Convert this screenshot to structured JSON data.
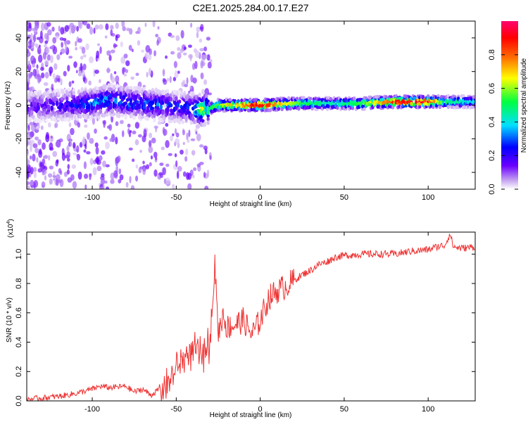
{
  "title": "C2E1.2025.284.00.17.E27",
  "chart_data": [
    {
      "type": "heatmap",
      "name": "spectrogram",
      "xlabel": "Height of straight line (km)",
      "ylabel": "Frequency (Hz)",
      "xlim": [
        -139,
        128
      ],
      "ylim": [
        -50,
        50
      ],
      "xticks": [
        -100,
        -50,
        0,
        50,
        100
      ],
      "xtick_labels": [
        "-100",
        "-50",
        "0",
        "50",
        "100"
      ],
      "yticks": [
        -40,
        -20,
        0,
        20,
        40
      ],
      "ytick_labels": [
        "-40",
        "-20",
        "0",
        "20",
        "40"
      ],
      "description_note": "Frequency band centered near 0 Hz; broad scatter for heights below -30 km, narrow high-amplitude line above -30 km",
      "ridge": {
        "x": [
          -139,
          -120,
          -100,
          -90,
          -80,
          -70,
          -60,
          -50,
          -40,
          -35,
          -30,
          -25,
          -20,
          0,
          20,
          40,
          60,
          80,
          100,
          110,
          128
        ],
        "y": [
          -1,
          0,
          1,
          3,
          2,
          1,
          0,
          -1,
          -2,
          -3,
          -2,
          0,
          0,
          0,
          1,
          1,
          1,
          2,
          2,
          2,
          2
        ],
        "amplitude": [
          0.15,
          0.2,
          0.3,
          0.35,
          0.3,
          0.3,
          0.3,
          0.25,
          0.3,
          0.7,
          0.5,
          0.6,
          0.7,
          0.95,
          0.6,
          0.45,
          0.55,
          0.9,
          0.95,
          0.5,
          0.4
        ]
      },
      "colorbar": {
        "label": "Normalized spectral amplitude",
        "range": [
          0,
          1
        ],
        "ticks": [
          0.0,
          0.2,
          0.4,
          0.6,
          0.8
        ],
        "tick_labels": [
          "0.0",
          "0.2",
          "0.4",
          "0.6",
          "0.8"
        ],
        "colors": [
          "#ffffff",
          "#c8a8f0",
          "#6a00ff",
          "#0000ff",
          "#00e0ff",
          "#00ff40",
          "#ffff00",
          "#ff7000",
          "#ff0000",
          "#ff0070"
        ]
      }
    },
    {
      "type": "line",
      "name": "snr",
      "color": "#ee3333",
      "xlabel": "Height of straight line (km)",
      "ylabel": "SNR (10 * v/v)",
      "exponent_label": "(x10",
      "exponent_power": "4",
      "xlim": [
        -139,
        128
      ],
      "ylim": [
        0,
        1.15
      ],
      "xticks": [
        -100,
        -50,
        0,
        50,
        100
      ],
      "xtick_labels": [
        "-100",
        "-50",
        "0",
        "50",
        "100"
      ],
      "yticks": [
        0.0,
        0.2,
        0.4,
        0.6,
        0.8,
        1.0
      ],
      "ytick_labels": [
        "0.0",
        "0.2",
        "0.4",
        "0.6",
        "0.8",
        "1.0"
      ],
      "x": [
        -139,
        -130,
        -120,
        -110,
        -100,
        -95,
        -90,
        -80,
        -75,
        -70,
        -65,
        -60,
        -55,
        -50,
        -45,
        -40,
        -35,
        -30,
        -27,
        -25,
        -22,
        -20,
        -15,
        -10,
        -5,
        0,
        5,
        10,
        15,
        20,
        25,
        30,
        35,
        40,
        45,
        50,
        60,
        70,
        80,
        90,
        100,
        105,
        110,
        113,
        115,
        120,
        128
      ],
      "y": [
        0.01,
        0.02,
        0.03,
        0.05,
        0.08,
        0.1,
        0.09,
        0.1,
        0.06,
        0.08,
        0.04,
        0.08,
        0.12,
        0.22,
        0.3,
        0.35,
        0.3,
        0.4,
        0.93,
        0.45,
        0.6,
        0.5,
        0.52,
        0.55,
        0.45,
        0.55,
        0.7,
        0.75,
        0.78,
        0.82,
        0.86,
        0.89,
        0.93,
        0.95,
        0.98,
        0.99,
        1.0,
        1.0,
        1.0,
        1.02,
        1.03,
        1.05,
        1.06,
        1.14,
        1.05,
        1.04,
        1.05
      ]
    }
  ]
}
